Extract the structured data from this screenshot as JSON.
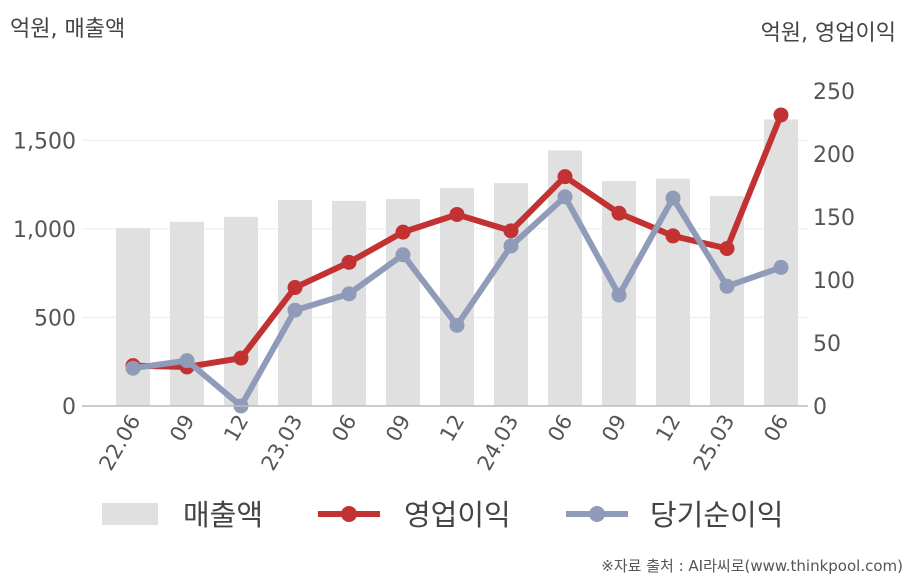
{
  "chart_data": {
    "type": "bar",
    "left_unit": "억원, 매출액",
    "right_unit": "억원, 영업이익",
    "categories": [
      "22.06",
      "09",
      "12",
      "23.03",
      "06",
      "09",
      "12",
      "24.03",
      "06",
      "09",
      "12",
      "25.03",
      "06"
    ],
    "left_axis": {
      "ylim": [
        0,
        1750
      ],
      "ticks": [
        "0",
        "500",
        "1,000",
        "1,500"
      ],
      "tick_values": [
        0,
        500,
        1000,
        1500
      ]
    },
    "right_axis": {
      "ylim": [
        0,
        250
      ],
      "ticks": [
        "0",
        "50",
        "100",
        "150",
        "200",
        "250"
      ],
      "tick_values": [
        0,
        50,
        100,
        150,
        200,
        250
      ]
    },
    "series": [
      {
        "name": "매출액",
        "type": "bar",
        "axis": "left",
        "color": "#e0e0e0",
        "values": [
          1005,
          1040,
          1068,
          1163,
          1158,
          1168,
          1230,
          1258,
          1443,
          1270,
          1283,
          1185,
          1618
        ]
      },
      {
        "name": "영업이익",
        "type": "line",
        "axis": "right",
        "color": "#c23232",
        "values": [
          32,
          31,
          38,
          94,
          114,
          138,
          152,
          139,
          182,
          153,
          135,
          125,
          231
        ]
      },
      {
        "name": "당기순이익",
        "type": "line",
        "axis": "right",
        "color": "#8f9bb8",
        "values": [
          30,
          36,
          0,
          76,
          89,
          120,
          64,
          127,
          166,
          88,
          165,
          95,
          110
        ]
      }
    ],
    "grid": true,
    "legend_position": "bottom"
  },
  "source_note": "※자료 출처 : AI라씨로(www.thinkpool.com)"
}
